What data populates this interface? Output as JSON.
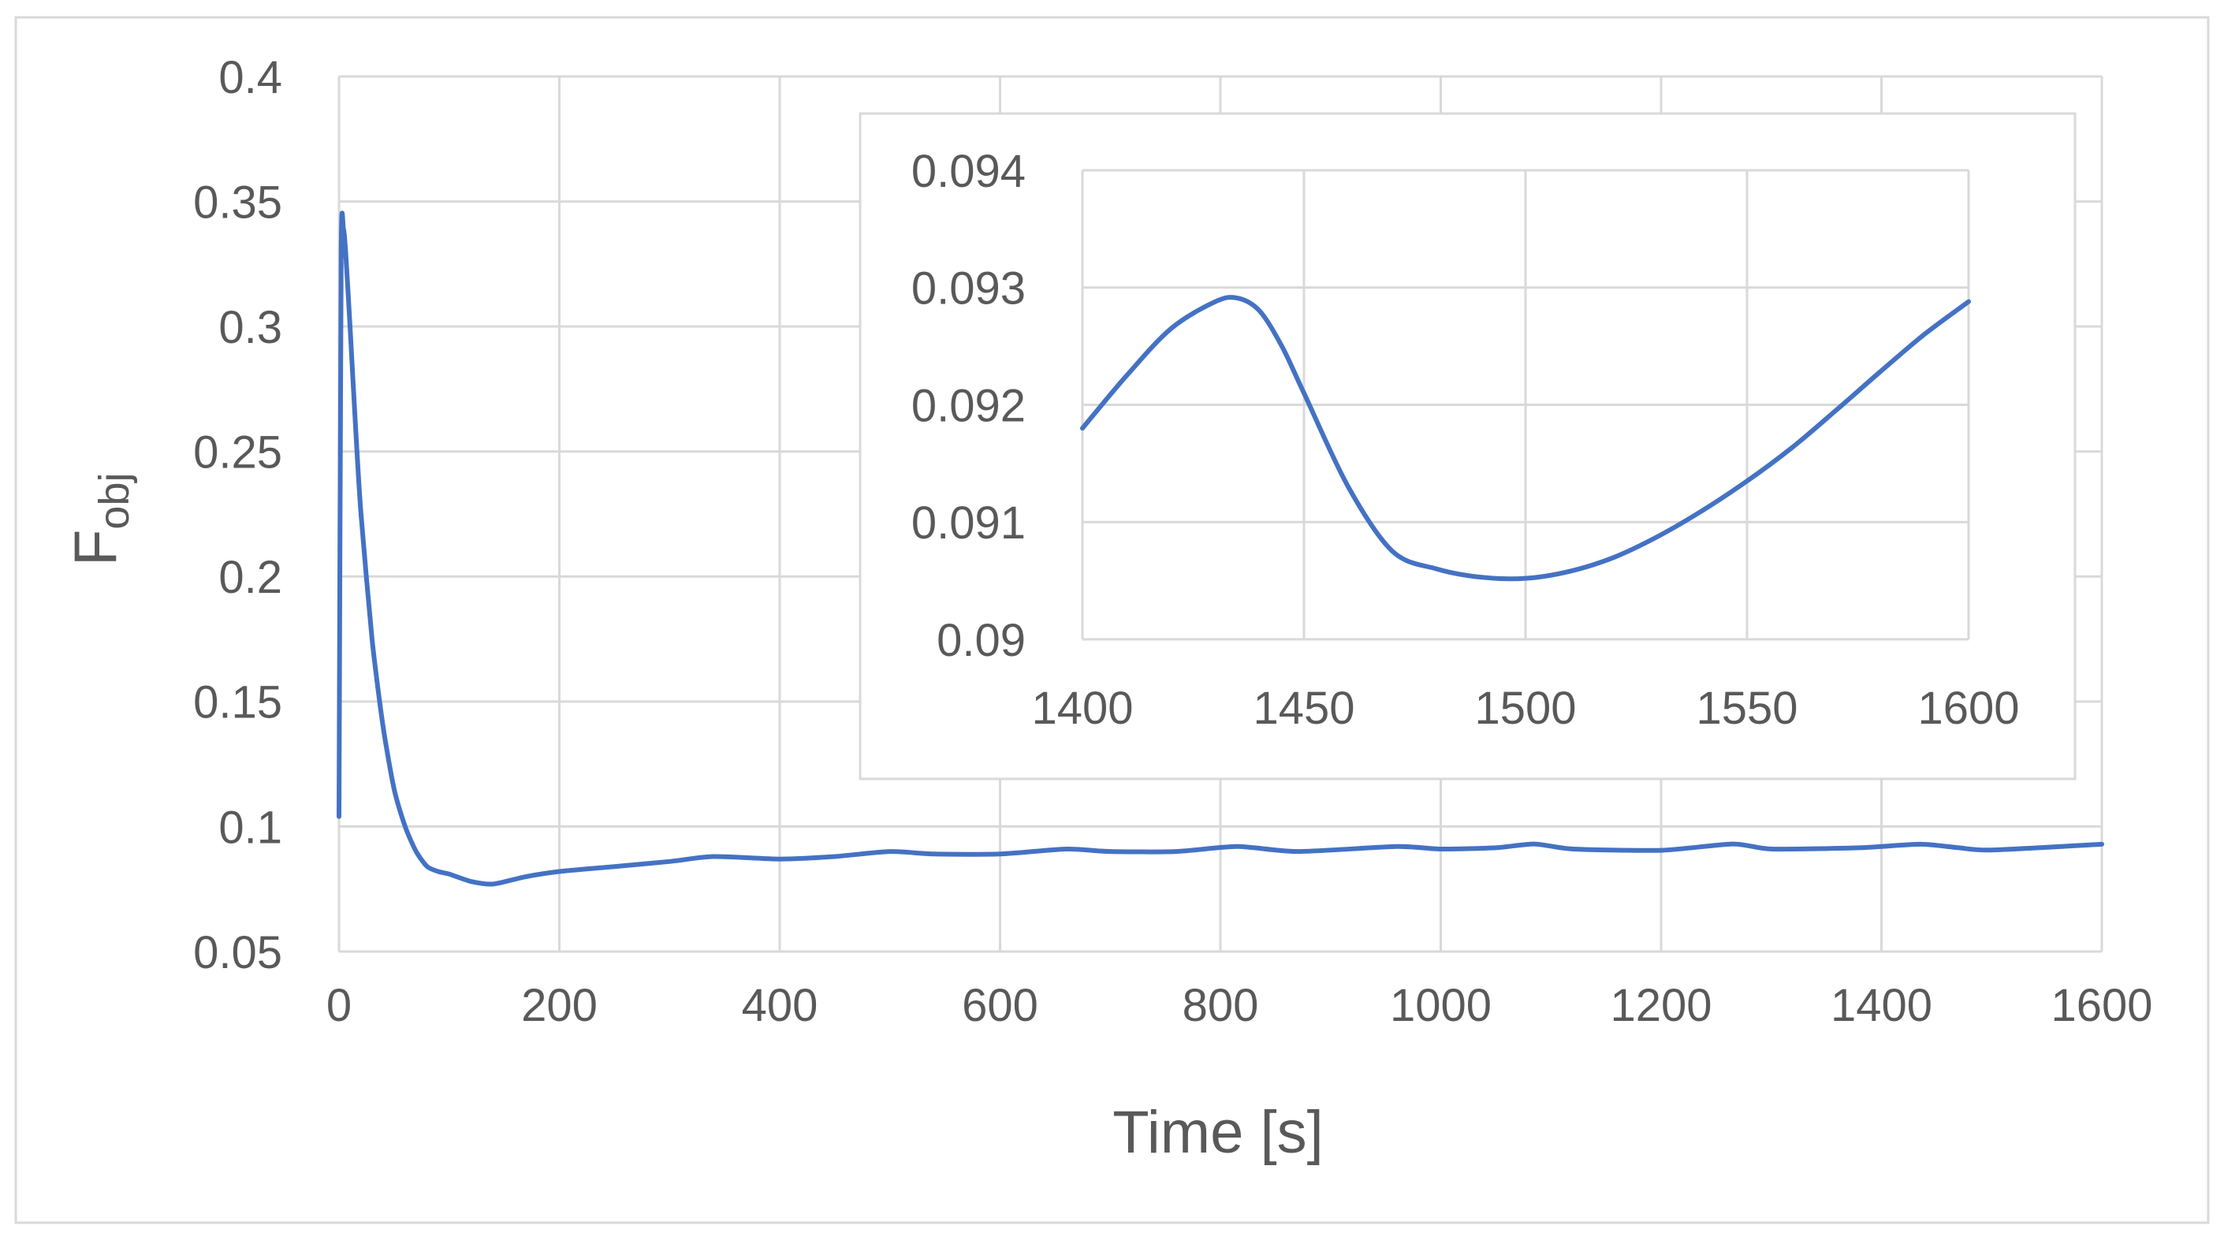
{
  "colors": {
    "series": "#4472c4",
    "grid": "#d9d9d9",
    "text": "#595959",
    "frame": "#d9d9d9",
    "background": "#ffffff"
  },
  "chart_data": [
    {
      "type": "line",
      "role": "main",
      "xlabel": "Time [s]",
      "ylabel_main": "F",
      "ylabel_sub": "obj",
      "xlim": [
        0,
        1600
      ],
      "ylim": [
        0.05,
        0.4
      ],
      "x_ticks": [
        0,
        200,
        400,
        600,
        800,
        1000,
        1200,
        1400,
        1600
      ],
      "y_ticks": [
        0.05,
        0.1,
        0.15,
        0.2,
        0.25,
        0.3,
        0.35,
        0.4
      ],
      "grid": true,
      "legend": "none",
      "series": [
        {
          "x": [
            0,
            2,
            4,
            6,
            10,
            15,
            20,
            30,
            40,
            50,
            60,
            70,
            80,
            90,
            100,
            120,
            140,
            170,
            200,
            250,
            300,
            340,
            400,
            450,
            500,
            540,
            600,
            660,
            700,
            760,
            815,
            870,
            960,
            1000,
            1050,
            1085,
            1120,
            1200,
            1265,
            1300,
            1380,
            1435,
            1470,
            1500,
            1600
          ],
          "y": [
            0.104,
            0.33,
            0.339,
            0.33,
            0.3,
            0.26,
            0.225,
            0.175,
            0.14,
            0.115,
            0.1,
            0.09,
            0.084,
            0.082,
            0.081,
            0.078,
            0.077,
            0.08,
            0.082,
            0.084,
            0.086,
            0.088,
            0.087,
            0.088,
            0.09,
            0.089,
            0.089,
            0.091,
            0.09,
            0.09,
            0.092,
            0.09,
            0.092,
            0.091,
            0.0915,
            0.093,
            0.091,
            0.0905,
            0.093,
            0.091,
            0.0915,
            0.0929,
            0.0915,
            0.0906,
            0.0929
          ]
        }
      ]
    },
    {
      "type": "line",
      "role": "inset",
      "xlim": [
        1400,
        1600
      ],
      "ylim": [
        0.09,
        0.094
      ],
      "x_ticks": [
        1400,
        1450,
        1500,
        1550,
        1600
      ],
      "y_ticks": [
        0.09,
        0.091,
        0.092,
        0.093,
        0.094
      ],
      "grid": true,
      "legend": "none",
      "series": [
        {
          "x": [
            1400,
            1410,
            1420,
            1430,
            1435,
            1440,
            1445,
            1450,
            1460,
            1470,
            1480,
            1490,
            1500,
            1510,
            1520,
            1530,
            1540,
            1550,
            1560,
            1570,
            1580,
            1590,
            1600
          ],
          "y": [
            0.0918,
            0.09225,
            0.09265,
            0.09288,
            0.09291,
            0.0928,
            0.0925,
            0.0921,
            0.0913,
            0.09075,
            0.0906,
            0.09053,
            0.09052,
            0.09058,
            0.0907,
            0.09088,
            0.0911,
            0.09135,
            0.09163,
            0.09195,
            0.09228,
            0.0926,
            0.09288
          ]
        }
      ]
    }
  ]
}
